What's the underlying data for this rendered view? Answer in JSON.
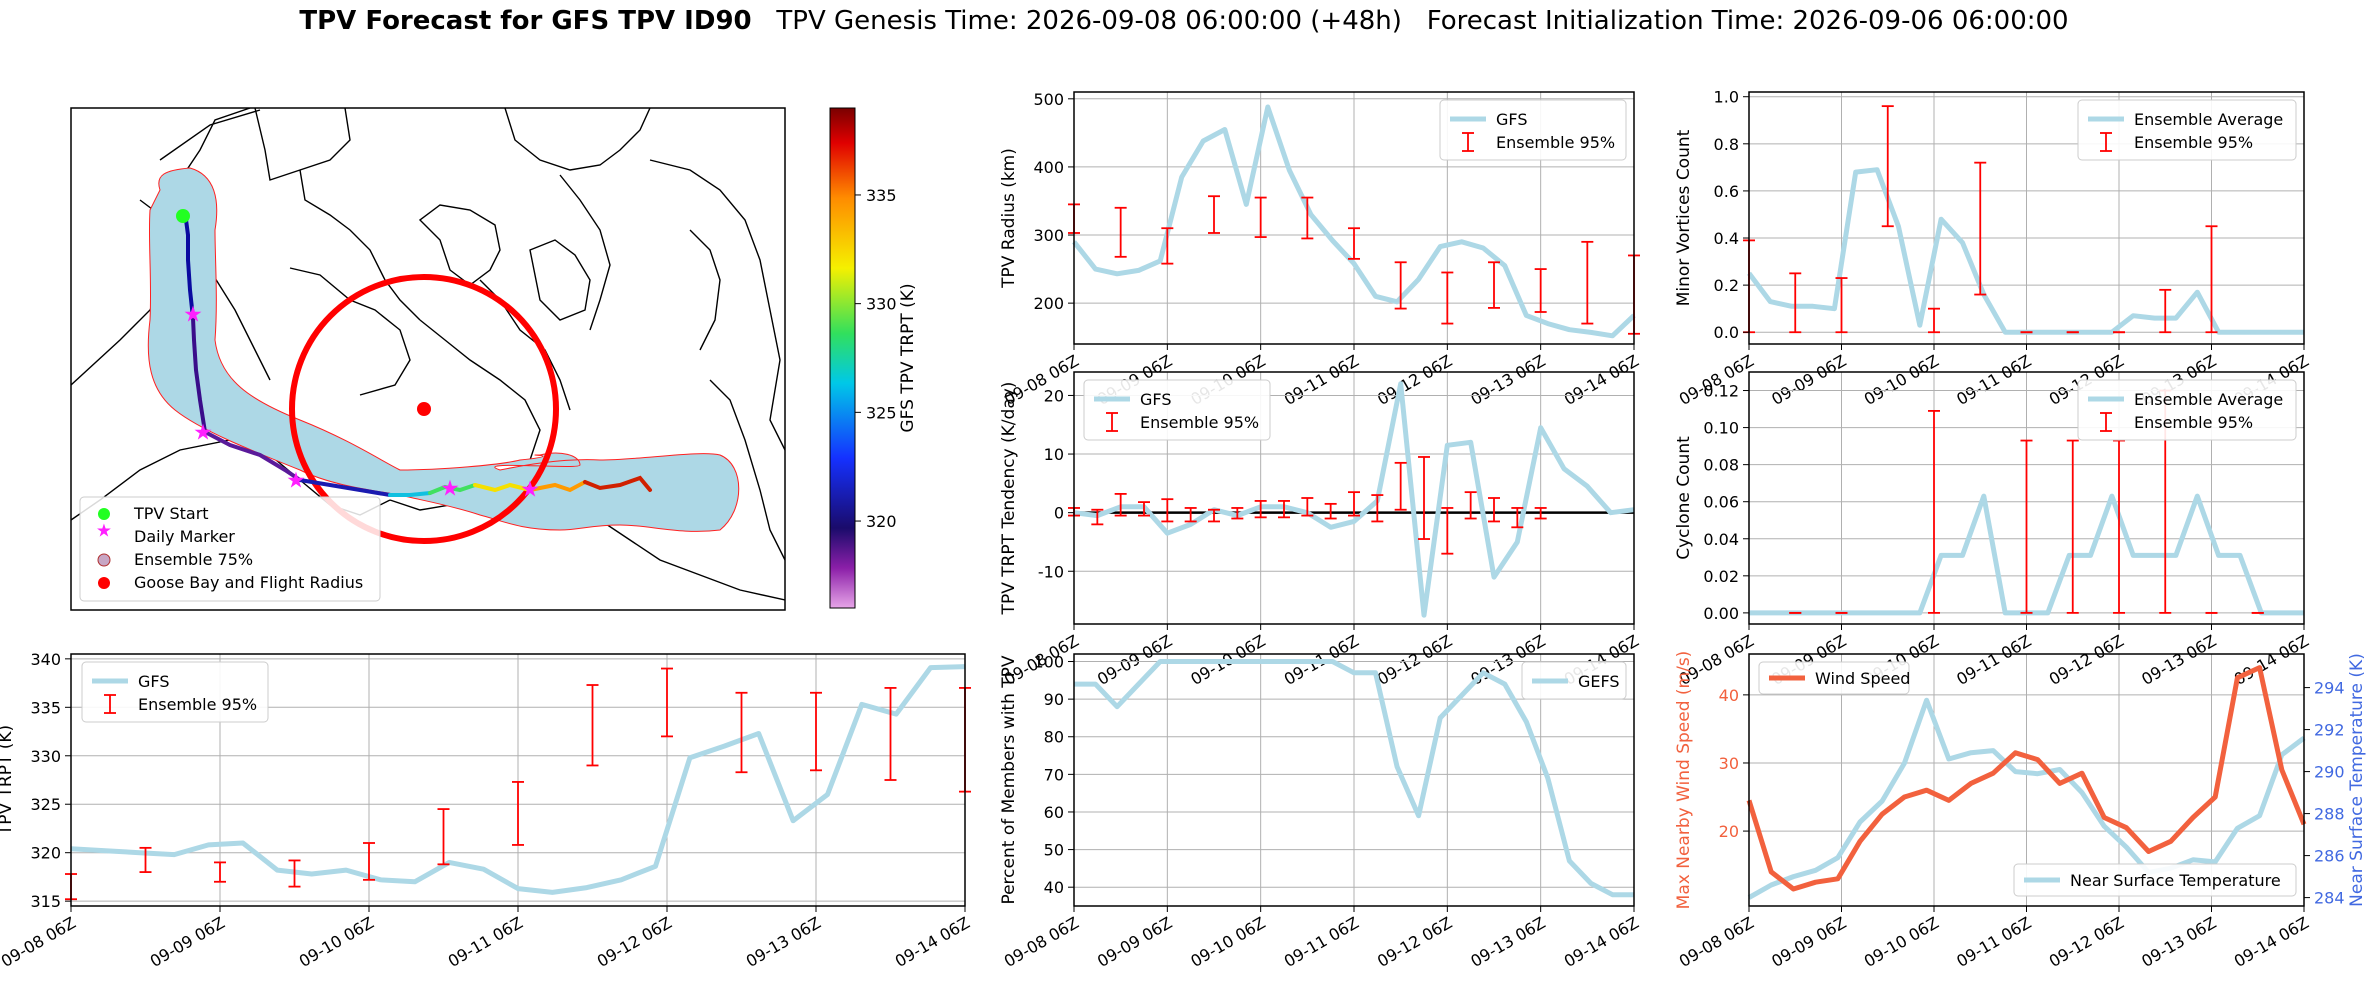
{
  "figure": {
    "title_bold": "TPV Forecast for GFS TPV ID90",
    "title_rest": "   TPV Genesis Time: 2026-09-08 06:00:00 (+48h)   Forecast Initialization Time: 2026-09-06 06:00:00"
  },
  "colors": {
    "gfs": "#add8e6",
    "ensemble": "#ff0000",
    "wind": "#f2613e",
    "temp_axis": "#4169e1",
    "grid": "#b0b0b0",
    "track_plume": "#add8e6",
    "flight_radius": "#ff0000"
  },
  "map": {
    "legend": [
      "TPV Start",
      "Daily Marker",
      "Ensemble 75%",
      "Goose Bay and Flight Radius"
    ],
    "colorbar": {
      "label": "GFS TPV TRPT (K)",
      "ticks": [
        320,
        325,
        330,
        335
      ],
      "range": [
        316,
        339
      ]
    }
  },
  "chart_data": [
    {
      "type": "line",
      "id": "trpt",
      "title": "",
      "xlabel": "",
      "ylabel": "TPV TRPT (K)",
      "xlim": [
        "09-08 06Z",
        "09-14 06Z"
      ],
      "ylim": [
        314.5,
        340.5
      ],
      "xticks": [
        "09-08 06Z",
        "09-09 06Z",
        "09-10 06Z",
        "09-11 06Z",
        "09-12 06Z",
        "09-13 06Z",
        "09-14 06Z"
      ],
      "yticks": [
        315,
        320,
        325,
        330,
        335,
        340
      ],
      "legend": [
        "GFS",
        "Ensemble 95%"
      ],
      "legend_loc": "upper left",
      "gfs": [
        320.4,
        320.2,
        320.0,
        319.8,
        320.8,
        321.0,
        318.2,
        317.8,
        318.2,
        317.2,
        317.0,
        319.0,
        318.3,
        316.3,
        315.9,
        316.4,
        317.2,
        318.6,
        329.8,
        331.0,
        332.3,
        323.3,
        326.0,
        335.3,
        334.3,
        339.1,
        339.2
      ],
      "errorbars": [
        {
          "x": 0.0,
          "lo": 315.2,
          "hi": 317.8
        },
        {
          "x": 0.5,
          "lo": 318.0,
          "hi": 320.5
        },
        {
          "x": 1.0,
          "lo": 317.0,
          "hi": 319.0
        },
        {
          "x": 1.5,
          "lo": 316.5,
          "hi": 319.2
        },
        {
          "x": 2.0,
          "lo": 317.2,
          "hi": 321.0
        },
        {
          "x": 2.5,
          "lo": 318.8,
          "hi": 324.5
        },
        {
          "x": 3.0,
          "lo": 320.8,
          "hi": 327.3
        },
        {
          "x": 3.5,
          "lo": 329.0,
          "hi": 337.3
        },
        {
          "x": 4.0,
          "lo": 332.0,
          "hi": 339.0
        },
        {
          "x": 4.5,
          "lo": 328.3,
          "hi": 336.5
        },
        {
          "x": 5.0,
          "lo": 328.5,
          "hi": 336.5
        },
        {
          "x": 5.5,
          "lo": 327.5,
          "hi": 337.0
        },
        {
          "x": 6.0,
          "lo": 326.3,
          "hi": 337.0
        }
      ]
    },
    {
      "type": "line",
      "id": "radius",
      "title": "",
      "xlabel": "",
      "ylabel": "TPV Radius (km)",
      "xlim": [
        "09-08 06Z",
        "09-14 06Z"
      ],
      "ylim": [
        140,
        510
      ],
      "xticks": [
        "09-08 06Z",
        "09-09 06Z",
        "09-10 06Z",
        "09-11 06Z",
        "09-12 06Z",
        "09-13 06Z",
        "09-14 06Z"
      ],
      "yticks": [
        200,
        300,
        400,
        500
      ],
      "legend": [
        "GFS",
        "Ensemble 95%"
      ],
      "legend_loc": "upper right",
      "gfs": [
        290,
        250,
        243,
        248,
        262,
        385,
        438,
        455,
        345,
        488,
        395,
        330,
        292,
        258,
        210,
        202,
        235,
        283,
        290,
        281,
        255,
        182,
        170,
        161,
        157,
        152,
        182
      ],
      "errorbars": [
        {
          "x": 0.0,
          "lo": 303,
          "hi": 345
        },
        {
          "x": 0.5,
          "lo": 268,
          "hi": 340
        },
        {
          "x": 1.0,
          "lo": 258,
          "hi": 310
        },
        {
          "x": 1.5,
          "lo": 303,
          "hi": 357
        },
        {
          "x": 2.0,
          "lo": 297,
          "hi": 355
        },
        {
          "x": 2.5,
          "lo": 295,
          "hi": 355
        },
        {
          "x": 3.0,
          "lo": 265,
          "hi": 310
        },
        {
          "x": 3.5,
          "lo": 192,
          "hi": 260
        },
        {
          "x": 4.0,
          "lo": 170,
          "hi": 245
        },
        {
          "x": 4.5,
          "lo": 193,
          "hi": 260
        },
        {
          "x": 5.0,
          "lo": 187,
          "hi": 250
        },
        {
          "x": 5.5,
          "lo": 170,
          "hi": 290
        },
        {
          "x": 6.0,
          "lo": 155,
          "hi": 270
        }
      ]
    },
    {
      "type": "line",
      "id": "tendency",
      "title": "",
      "xlabel": "",
      "ylabel": "TPV TRPT Tendency (K/day)",
      "xlim": [
        "09-08 06Z",
        "09-14 06Z"
      ],
      "ylim": [
        -19,
        24
      ],
      "xticks": [
        "09-08 06Z",
        "09-09 06Z",
        "09-10 06Z",
        "09-11 06Z",
        "09-12 06Z",
        "09-13 06Z",
        "09-14 06Z"
      ],
      "yticks": [
        -10,
        0,
        10,
        20
      ],
      "legend": [
        "GFS",
        "Ensemble 95%"
      ],
      "legend_loc": "upper left",
      "gfs": [
        0.0,
        -0.5,
        1.0,
        1.0,
        -3.5,
        -2.0,
        0.5,
        -0.5,
        1.0,
        1.0,
        0.0,
        -2.5,
        -1.5,
        2.0,
        22.0,
        -17.5,
        11.5,
        12.0,
        -11.0,
        -5.0,
        14.5,
        7.5,
        4.5,
        0.0,
        0.5
      ],
      "errorbars": [
        {
          "x": 0.0,
          "lo": -0.5,
          "hi": 0.8
        },
        {
          "x": 0.25,
          "lo": -2.0,
          "hi": 0.5
        },
        {
          "x": 0.5,
          "lo": -0.5,
          "hi": 3.2
        },
        {
          "x": 0.75,
          "lo": -0.5,
          "hi": 1.8
        },
        {
          "x": 1.0,
          "lo": -1.5,
          "hi": 2.3
        },
        {
          "x": 1.25,
          "lo": -1.5,
          "hi": 0.8
        },
        {
          "x": 1.5,
          "lo": -1.5,
          "hi": 0.5
        },
        {
          "x": 1.75,
          "lo": -1.0,
          "hi": 0.8
        },
        {
          "x": 2.0,
          "lo": -0.8,
          "hi": 2.0
        },
        {
          "x": 2.25,
          "lo": -0.8,
          "hi": 2.0
        },
        {
          "x": 2.5,
          "lo": -0.5,
          "hi": 2.5
        },
        {
          "x": 2.75,
          "lo": -1.0,
          "hi": 1.5
        },
        {
          "x": 3.0,
          "lo": -0.5,
          "hi": 3.5
        },
        {
          "x": 3.25,
          "lo": -1.5,
          "hi": 3.0
        },
        {
          "x": 3.5,
          "lo": 0.5,
          "hi": 8.5
        },
        {
          "x": 3.75,
          "lo": -4.5,
          "hi": 9.5
        },
        {
          "x": 4.0,
          "lo": -7.0,
          "hi": 0.8
        },
        {
          "x": 4.25,
          "lo": -1.0,
          "hi": 3.5
        },
        {
          "x": 4.5,
          "lo": -1.5,
          "hi": 2.5
        },
        {
          "x": 4.75,
          "lo": -2.5,
          "hi": 0.8
        },
        {
          "x": 5.0,
          "lo": -1.0,
          "hi": 0.8
        }
      ]
    },
    {
      "type": "line",
      "id": "members",
      "title": "",
      "xlabel": "",
      "ylabel": "Percent of Members with TPV",
      "xlim": [
        "09-08 06Z",
        "09-14 06Z"
      ],
      "ylim": [
        35,
        102
      ],
      "xticks": [
        "09-08 06Z",
        "09-09 06Z",
        "09-10 06Z",
        "09-11 06Z",
        "09-12 06Z",
        "09-13 06Z",
        "09-14 06Z"
      ],
      "yticks": [
        40,
        50,
        60,
        70,
        80,
        90,
        100
      ],
      "legend": [
        "GEFS"
      ],
      "legend_loc": "upper right",
      "gefs": [
        94,
        94,
        88,
        94,
        100,
        100,
        100,
        100,
        100,
        100,
        100,
        100,
        100,
        97,
        97,
        72,
        59,
        85,
        91,
        97,
        94,
        84,
        69,
        47,
        41,
        38,
        38
      ]
    },
    {
      "type": "line",
      "id": "minor",
      "title": "",
      "xlabel": "",
      "ylabel": "Minor Vortices Count",
      "xlim": [
        "09-08 06Z",
        "09-14 06Z"
      ],
      "ylim": [
        -0.05,
        1.02
      ],
      "xticks": [
        "09-08 06Z",
        "09-09 06Z",
        "09-10 06Z",
        "09-11 06Z",
        "09-12 06Z",
        "09-13 06Z",
        "09-14 06Z"
      ],
      "yticks": [
        0.0,
        0.2,
        0.4,
        0.6,
        0.8,
        1.0
      ],
      "legend": [
        "Ensemble Average",
        "Ensemble 95%"
      ],
      "legend_loc": "upper right",
      "avg": [
        0.25,
        0.13,
        0.11,
        0.11,
        0.1,
        0.68,
        0.69,
        0.45,
        0.03,
        0.48,
        0.38,
        0.16,
        0.0,
        0.0,
        0.0,
        0.0,
        0.0,
        0.0,
        0.07,
        0.06,
        0.06,
        0.17,
        0.0,
        0.0,
        0.0,
        0.0,
        0.0
      ],
      "errorbars": [
        {
          "x": 0.0,
          "lo": 0.0,
          "hi": 0.39
        },
        {
          "x": 0.5,
          "lo": 0.0,
          "hi": 0.25
        },
        {
          "x": 1.0,
          "lo": 0.0,
          "hi": 0.23
        },
        {
          "x": 1.5,
          "lo": 0.45,
          "hi": 0.96
        },
        {
          "x": 2.0,
          "lo": 0.0,
          "hi": 0.1
        },
        {
          "x": 2.5,
          "lo": 0.16,
          "hi": 0.72
        },
        {
          "x": 3.0,
          "lo": 0.0,
          "hi": 0.0
        },
        {
          "x": 3.5,
          "lo": 0.0,
          "hi": 0.0
        },
        {
          "x": 4.0,
          "lo": 0.0,
          "hi": 0.0
        },
        {
          "x": 4.5,
          "lo": 0.0,
          "hi": 0.18
        },
        {
          "x": 5.0,
          "lo": 0.0,
          "hi": 0.45
        }
      ]
    },
    {
      "type": "line",
      "id": "cyclone",
      "title": "",
      "xlabel": "",
      "ylabel": "Cyclone Count",
      "xlim": [
        "09-08 06Z",
        "09-14 06Z"
      ],
      "ylim": [
        -0.006,
        0.13
      ],
      "xticks": [
        "09-08 06Z",
        "09-09 06Z",
        "09-10 06Z",
        "09-11 06Z",
        "09-12 06Z",
        "09-13 06Z",
        "09-14 06Z"
      ],
      "yticks": [
        0.0,
        0.02,
        0.04,
        0.06,
        0.08,
        0.1,
        0.12
      ],
      "legend": [
        "Ensemble Average",
        "Ensemble 95%"
      ],
      "legend_loc": "upper right",
      "avg": [
        0.0,
        0.0,
        0.0,
        0.0,
        0.0,
        0.0,
        0.0,
        0.0,
        0.0,
        0.031,
        0.031,
        0.063,
        0.0,
        0.0,
        0.0,
        0.031,
        0.031,
        0.063,
        0.031,
        0.031,
        0.031,
        0.063,
        0.031,
        0.031,
        0.0,
        0.0,
        0.0
      ],
      "errorbars": [
        {
          "x": 0.5,
          "lo": 0.0,
          "hi": 0.0
        },
        {
          "x": 1.0,
          "lo": 0.0,
          "hi": 0.0
        },
        {
          "x": 2.0,
          "lo": 0.0,
          "hi": 0.109
        },
        {
          "x": 3.0,
          "lo": 0.0,
          "hi": 0.093
        },
        {
          "x": 3.5,
          "lo": 0.0,
          "hi": 0.093
        },
        {
          "x": 4.0,
          "lo": 0.0,
          "hi": 0.093
        },
        {
          "x": 4.5,
          "lo": 0.0,
          "hi": 0.12
        },
        {
          "x": 5.0,
          "lo": 0.0,
          "hi": 0.0
        },
        {
          "x": 5.5,
          "lo": 0.0,
          "hi": 0.0
        }
      ]
    },
    {
      "type": "line",
      "id": "wind",
      "title": "",
      "xlabel": "",
      "ylabel": "Max Nearby Wind Speed (m/s)",
      "ylabel_right": "Near Surface Temperature (K)",
      "xlim": [
        "09-08 06Z",
        "09-14 06Z"
      ],
      "ylim": [
        9,
        46
      ],
      "ylim_right": [
        283.6,
        295.6
      ],
      "xticks": [
        "09-08 06Z",
        "09-09 06Z",
        "09-10 06Z",
        "09-11 06Z",
        "09-12 06Z",
        "09-13 06Z",
        "09-14 06Z"
      ],
      "yticks": [
        20,
        30,
        40
      ],
      "yticks_right": [
        284,
        286,
        288,
        290,
        292,
        294
      ],
      "legend": [
        "Wind Speed"
      ],
      "legend_right": [
        "Near Surface Temperature"
      ],
      "wind": [
        24.5,
        14,
        11.5,
        12.5,
        13,
        18.5,
        22.5,
        25,
        26,
        24.5,
        27,
        28.5,
        31.5,
        30.5,
        27,
        28.5,
        22,
        20.5,
        17,
        18.5,
        22,
        25,
        42.5,
        44,
        29,
        21
      ],
      "temp": [
        284.0,
        284.6,
        285.0,
        285.3,
        285.9,
        287.6,
        288.6,
        290.4,
        293.4,
        290.6,
        290.9,
        291.0,
        290.0,
        289.9,
        290.1,
        289.0,
        287.4,
        286.4,
        285.2,
        285.4,
        285.8,
        285.7,
        287.3,
        287.9,
        290.8,
        291.6
      ]
    }
  ]
}
